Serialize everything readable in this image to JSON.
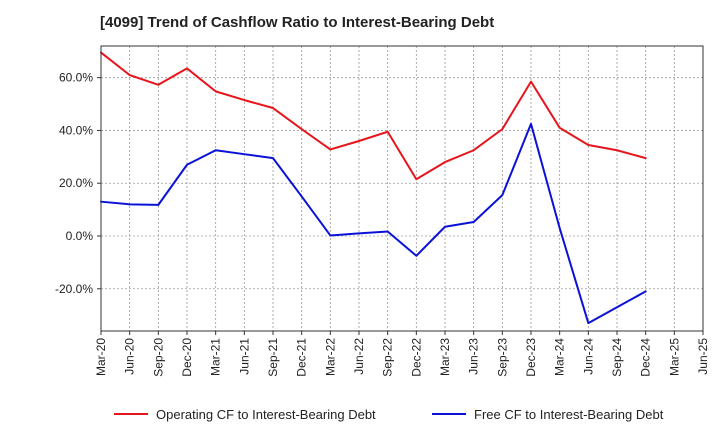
{
  "chart_data": {
    "type": "line",
    "title": "[4099]  Trend of Cashflow Ratio to Interest-Bearing Debt",
    "xlabel": "",
    "ylabel": "",
    "categories": [
      "Mar-20",
      "Jun-20",
      "Sep-20",
      "Dec-20",
      "Mar-21",
      "Jun-21",
      "Sep-21",
      "Dec-21",
      "Mar-22",
      "Jun-22",
      "Sep-22",
      "Dec-22",
      "Mar-23",
      "Jun-23",
      "Sep-23",
      "Dec-23",
      "Mar-24",
      "Jun-24",
      "Sep-24",
      "Dec-24",
      "Mar-25",
      "Jun-25"
    ],
    "y_ticks": [
      {
        "value": 60,
        "label": "60.0%"
      },
      {
        "value": 40,
        "label": "40.0%"
      },
      {
        "value": 20,
        "label": "20.0%"
      },
      {
        "value": 0,
        "label": "0.0%"
      },
      {
        "value": -20,
        "label": "-20.0%"
      }
    ],
    "ylim": [
      -36,
      72
    ],
    "grid": "dashed vertical and horizontal",
    "legend_position": "bottom",
    "series": [
      {
        "name": "Operating CF to Interest-Bearing Debt",
        "color": "#e8141b",
        "values": [
          69.5,
          61,
          57.3,
          63.5,
          54.8,
          51.5,
          48.5,
          40.5,
          32.8,
          36,
          39.5,
          21.5,
          28,
          32.5,
          40.5,
          58.5,
          41,
          34.5,
          32.5,
          29.5,
          null,
          null
        ]
      },
      {
        "name": "Free CF to Interest-Bearing Debt",
        "color": "#0b12d8",
        "values": [
          13,
          12,
          11.8,
          27,
          32.5,
          31,
          29.5,
          15,
          0.2,
          1,
          1.7,
          -7.5,
          3.5,
          5.3,
          15.5,
          42.5,
          3,
          -33,
          -27,
          -21,
          null,
          null
        ]
      }
    ]
  }
}
